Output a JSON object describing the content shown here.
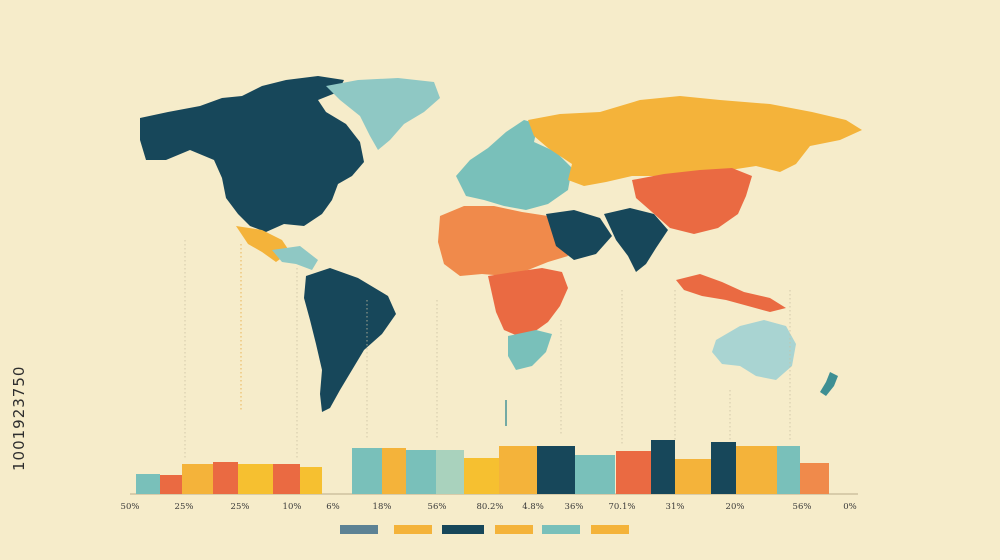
{
  "colors": {
    "background": "#f6ecca",
    "navy": "#17475a",
    "teal": "#79c0ba",
    "orange": "#f08a4b",
    "amber": "#f4b33a",
    "tomato": "#ea6a42",
    "sage": "#a9d2bd",
    "yellow": "#f6c030",
    "grey_blue": "#5d8294"
  },
  "map": {
    "regions": [
      {
        "name": "north-america",
        "color": "#17475a"
      },
      {
        "name": "greenland",
        "color": "#8fc8c4"
      },
      {
        "name": "mexico",
        "color": "#f4b33a"
      },
      {
        "name": "central-america",
        "color": "#8fc8c4"
      },
      {
        "name": "south-america",
        "color": "#17475a"
      },
      {
        "name": "europe",
        "color": "#79c0ba"
      },
      {
        "name": "russia",
        "color": "#f4b33a"
      },
      {
        "name": "north-africa",
        "color": "#f08a4b"
      },
      {
        "name": "central-africa",
        "color": "#ea6a42"
      },
      {
        "name": "southern-africa",
        "color": "#79c0ba"
      },
      {
        "name": "middle-east",
        "color": "#17475a"
      },
      {
        "name": "india",
        "color": "#17475a"
      },
      {
        "name": "china",
        "color": "#ea6a42"
      },
      {
        "name": "southeast-asia",
        "color": "#ea6a42"
      },
      {
        "name": "australia",
        "color": "#a9d4d2"
      },
      {
        "name": "new-zealand",
        "color": "#3e8f93"
      }
    ]
  },
  "chart_data": {
    "type": "bar",
    "grid": false,
    "legend": "bottom",
    "categories": [
      "50%",
      "25%",
      "25%",
      "10%",
      "6%",
      "18%",
      "56%",
      "80.2%",
      "4.8%",
      "36%",
      "70.1%",
      "31%",
      "20%",
      "56%",
      "0%"
    ],
    "ylim": [
      0,
      60
    ],
    "bars": [
      {
        "value": 20,
        "color": "#79c0ba"
      },
      {
        "value": 19,
        "color": "#ea6a42"
      },
      {
        "value": 30,
        "color": "#f4b33a"
      },
      {
        "value": 32,
        "color": "#ea6a42"
      },
      {
        "value": 30,
        "color": "#f6c030"
      },
      {
        "value": 30,
        "color": "#ea6a42"
      },
      {
        "value": 27,
        "color": "#f6c030"
      },
      {
        "value": 46,
        "color": "#79c0ba"
      },
      {
        "value": 46,
        "color": "#f4b33a"
      },
      {
        "value": 44,
        "color": "#79c0ba"
      },
      {
        "value": 44,
        "color": "#a9d2bd"
      },
      {
        "value": 36,
        "color": "#f6c030"
      },
      {
        "value": 48,
        "color": "#f4b33a"
      },
      {
        "value": 48,
        "color": "#17475a"
      },
      {
        "value": 39,
        "color": "#79c0ba"
      },
      {
        "value": 43,
        "color": "#ea6a42"
      },
      {
        "value": 54,
        "color": "#17475a"
      },
      {
        "value": 35,
        "color": "#f4b33a"
      },
      {
        "value": 52,
        "color": "#17475a"
      },
      {
        "value": 48,
        "color": "#f4b33a"
      },
      {
        "value": 48,
        "color": "#79c0ba"
      },
      {
        "value": 31,
        "color": "#f08a4b"
      }
    ],
    "legend_swatches": [
      "#5d8294",
      "#f4b33a",
      "#17475a",
      "#f4b33a",
      "#79c0ba",
      "#f4b33a"
    ]
  },
  "watermark": {
    "id_text": "1001923750"
  }
}
